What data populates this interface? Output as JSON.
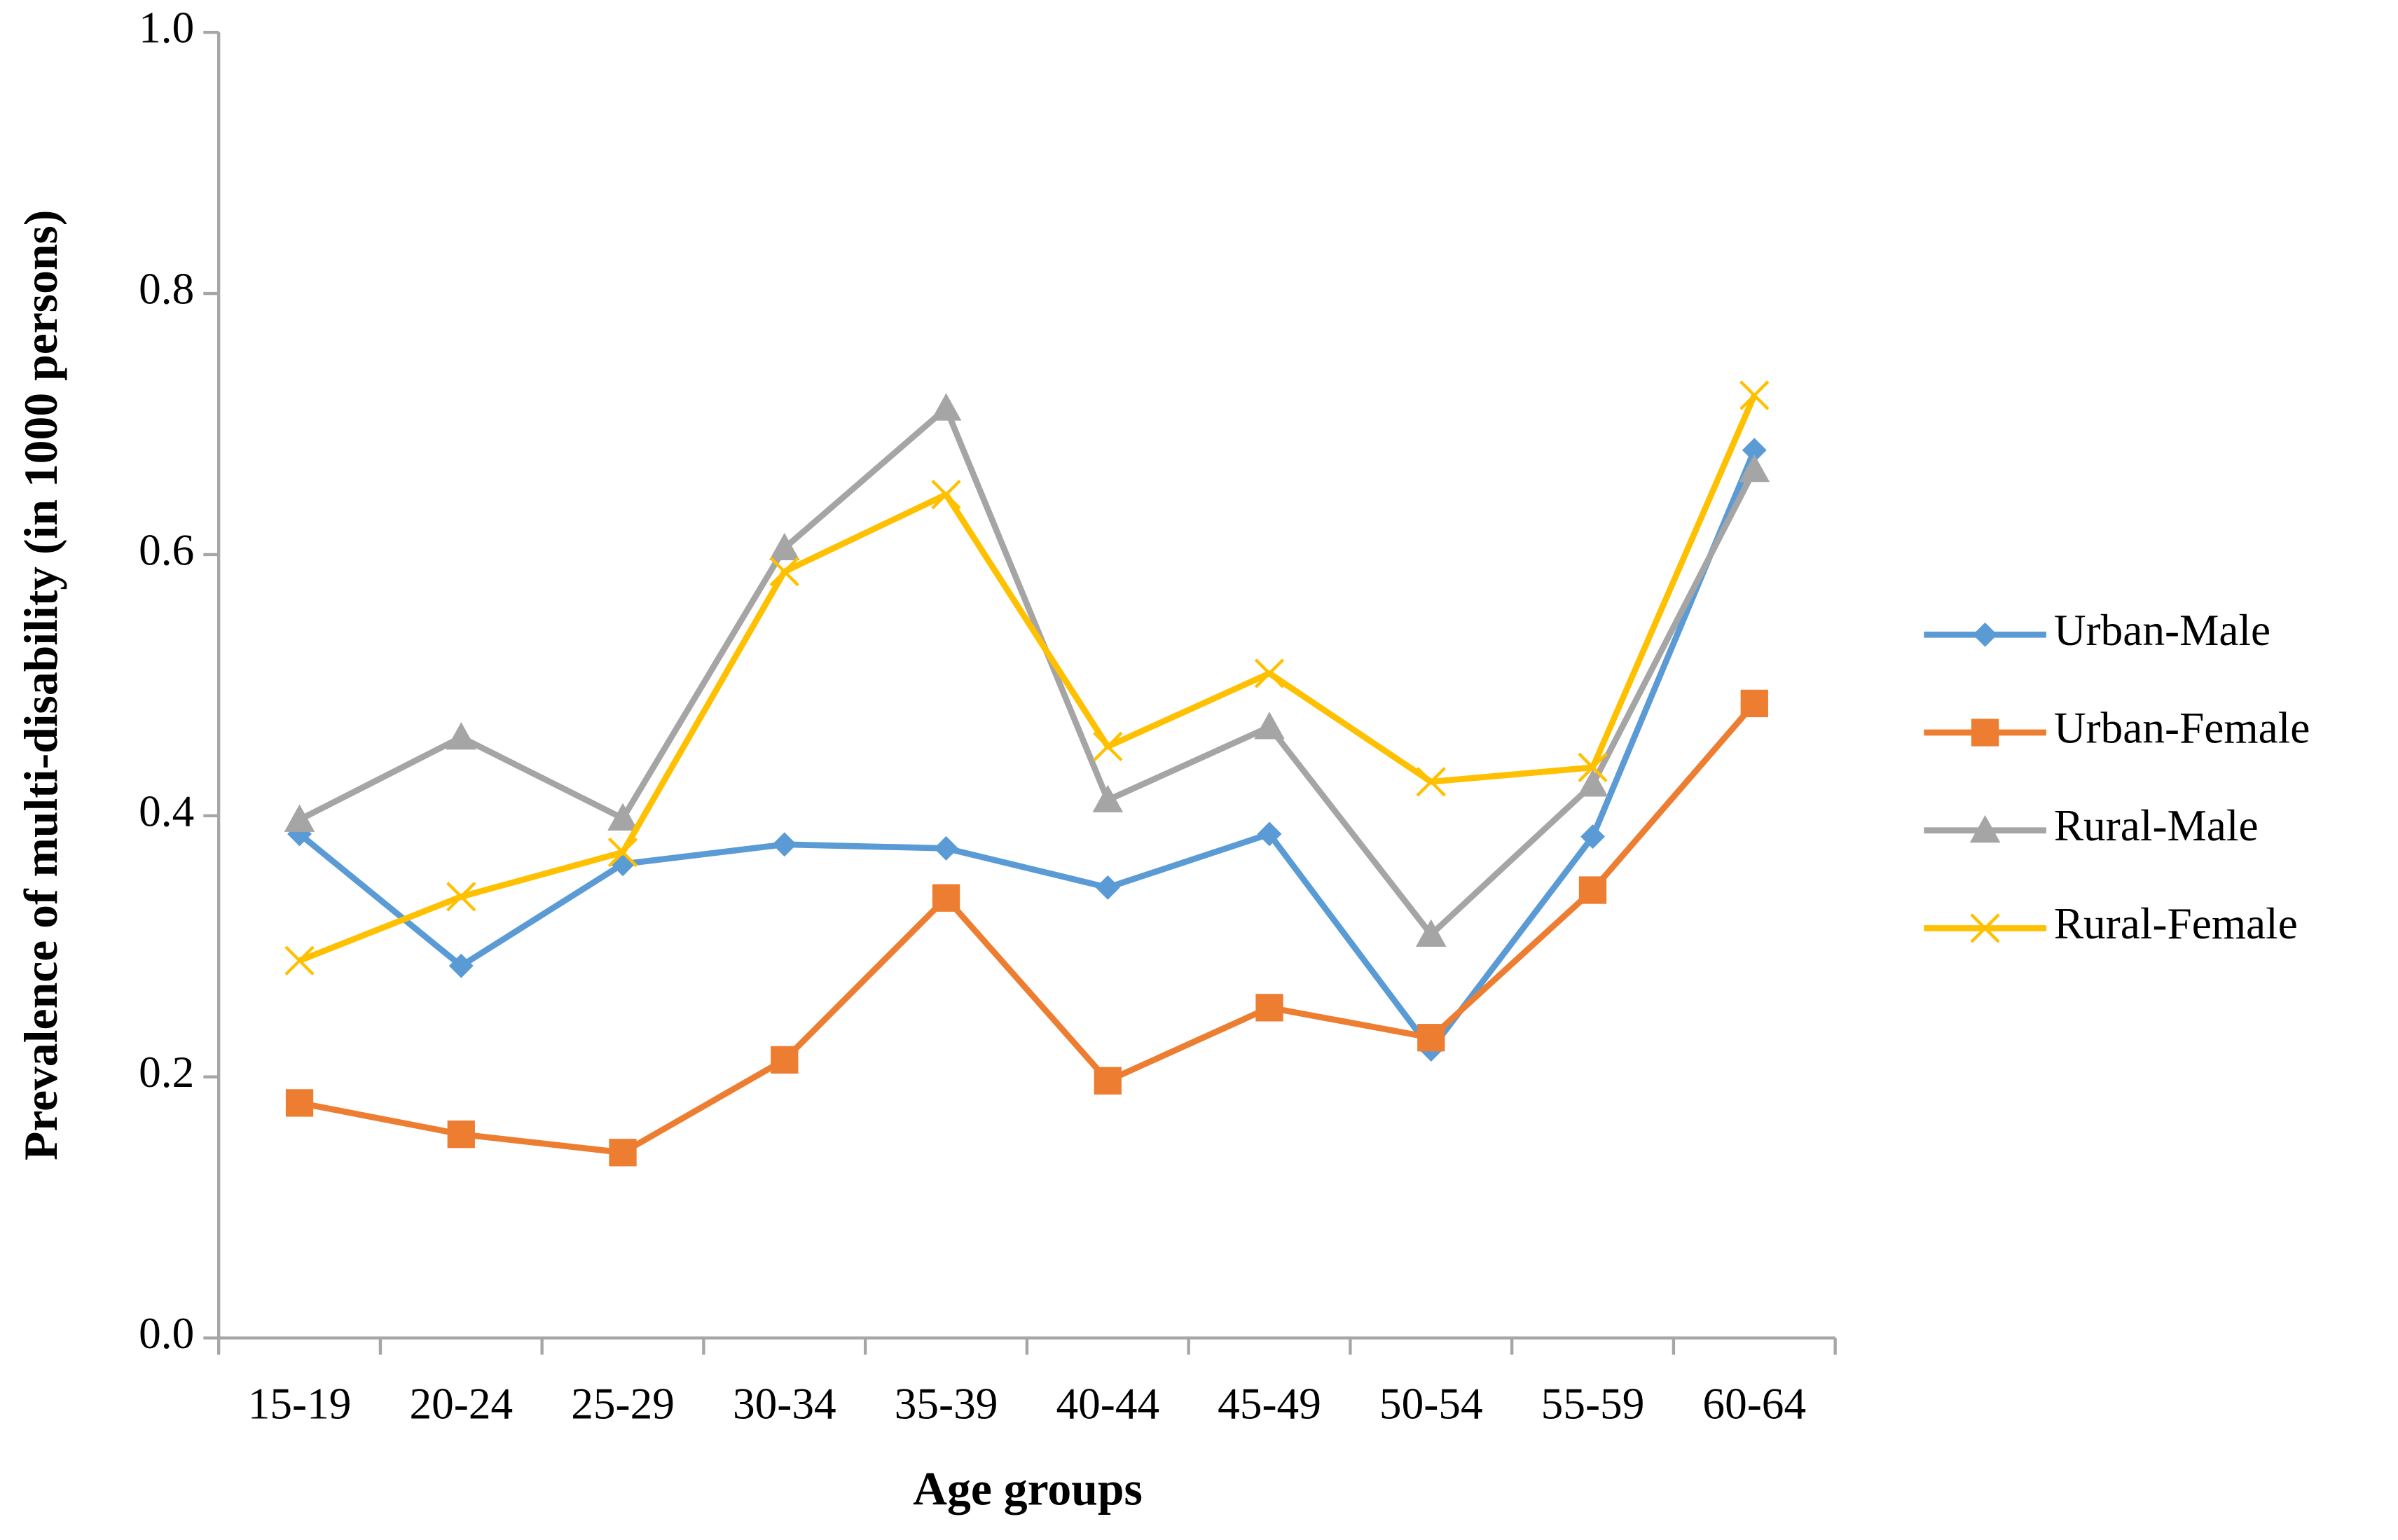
{
  "chart_data": {
    "type": "line",
    "x_label": "Age groups",
    "y_label": "Prevalence of multi-disability (in 1000 persons)",
    "categories": [
      "15-19",
      "20-24",
      "25-29",
      "30-34",
      "35-39",
      "40-44",
      "45-49",
      "50-54",
      "55-59",
      "60-64"
    ],
    "series": [
      {
        "name": "Urban-Male",
        "color": "#5b9bd5",
        "marker": "diamond",
        "values": [
          0.386,
          0.285,
          0.363,
          0.378,
          0.375,
          0.345,
          0.386,
          0.221,
          0.384,
          0.68
        ]
      },
      {
        "name": "Urban-Female",
        "color": "#ed7d31",
        "marker": "square",
        "values": [
          0.18,
          0.156,
          0.142,
          0.213,
          0.337,
          0.197,
          0.253,
          0.23,
          0.343,
          0.486
        ]
      },
      {
        "name": "Rural-Male",
        "color": "#a5a5a5",
        "marker": "triangle",
        "values": [
          0.397,
          0.46,
          0.398,
          0.605,
          0.712,
          0.412,
          0.468,
          0.309,
          0.424,
          0.665
        ]
      },
      {
        "name": "Rural-Female",
        "color": "#ffc000",
        "marker": "x",
        "values": [
          0.289,
          0.338,
          0.372,
          0.587,
          0.646,
          0.453,
          0.509,
          0.426,
          0.437,
          0.722
        ]
      }
    ],
    "ylim": [
      0,
      1
    ],
    "yticks": [
      {
        "value": 0,
        "label": "0.0"
      },
      0.2,
      0.4,
      0.6,
      0.8,
      {
        "value": 1,
        "label": "1.0"
      }
    ],
    "grid": false,
    "legend": "right"
  }
}
